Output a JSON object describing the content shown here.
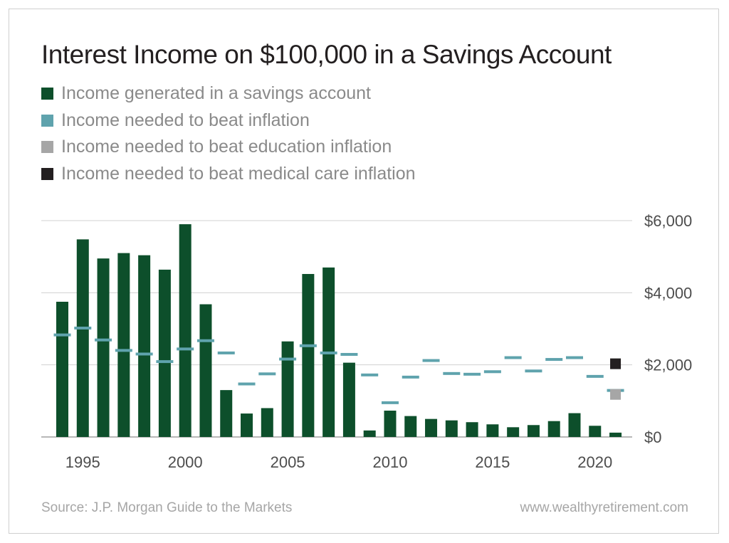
{
  "title": "Interest Income on $100,000 in a Savings Account",
  "legend": [
    {
      "label": "Income generated in a savings account",
      "color": "#0d4f2b"
    },
    {
      "label": "Income needed to beat inflation",
      "color": "#5fa3ad"
    },
    {
      "label": "Income needed to beat education inflation",
      "color": "#a6a6a6"
    },
    {
      "label": "Income needed to beat medical care inflation",
      "color": "#231f20"
    }
  ],
  "footer": {
    "source": "Source: J.P. Morgan Guide to the Markets",
    "site": "www.wealthyretirement.com"
  },
  "chart_data": {
    "type": "bar",
    "title": "Interest Income on $100,000 in a Savings Account",
    "x": [
      1994,
      1995,
      1996,
      1997,
      1998,
      1999,
      2000,
      2001,
      2002,
      2003,
      2004,
      2005,
      2006,
      2007,
      2008,
      2009,
      2010,
      2011,
      2012,
      2013,
      2014,
      2015,
      2016,
      2017,
      2018,
      2019,
      2020,
      2021
    ],
    "x_ticks": [
      {
        "value": 1995,
        "label": "1995"
      },
      {
        "value": 2000,
        "label": "2000"
      },
      {
        "value": 2005,
        "label": "2005"
      },
      {
        "value": 2010,
        "label": "2010"
      },
      {
        "value": 2015,
        "label": "2015"
      },
      {
        "value": 2020,
        "label": "2020"
      }
    ],
    "y_ticks": [
      {
        "value": 0,
        "label": "$0"
      },
      {
        "value": 2000,
        "label": "$2,000"
      },
      {
        "value": 4000,
        "label": "$4,000"
      },
      {
        "value": 6000,
        "label": "$6,000"
      }
    ],
    "ylim": [
      0,
      6000
    ],
    "y_axis_side": "right",
    "grid": true,
    "series": [
      {
        "name": "Income generated in a savings account",
        "kind": "bar",
        "color": "#0d4f2b",
        "values": [
          3750,
          5480,
          4950,
          5100,
          5040,
          4640,
          5900,
          3680,
          1300,
          650,
          800,
          2650,
          4520,
          4700,
          2060,
          180,
          730,
          580,
          500,
          460,
          410,
          350,
          270,
          330,
          440,
          660,
          310,
          120
        ]
      },
      {
        "name": "Income needed to beat inflation",
        "kind": "dash",
        "color": "#5fa3ad",
        "values": [
          2830,
          3020,
          2690,
          2400,
          2300,
          2090,
          2440,
          2670,
          2330,
          1470,
          1750,
          2160,
          2530,
          2330,
          2290,
          1720,
          950,
          1660,
          2120,
          1760,
          1740,
          1810,
          2200,
          1830,
          2150,
          2200,
          1680,
          1290
        ]
      },
      {
        "name": "Income needed to beat education inflation",
        "kind": "marker",
        "color": "#a6a6a6",
        "points": [
          {
            "x": 2021,
            "y": 1180
          }
        ]
      },
      {
        "name": "Income needed to beat medical care inflation",
        "kind": "marker",
        "color": "#231f20",
        "points": [
          {
            "x": 2021,
            "y": 2030
          }
        ]
      }
    ]
  }
}
